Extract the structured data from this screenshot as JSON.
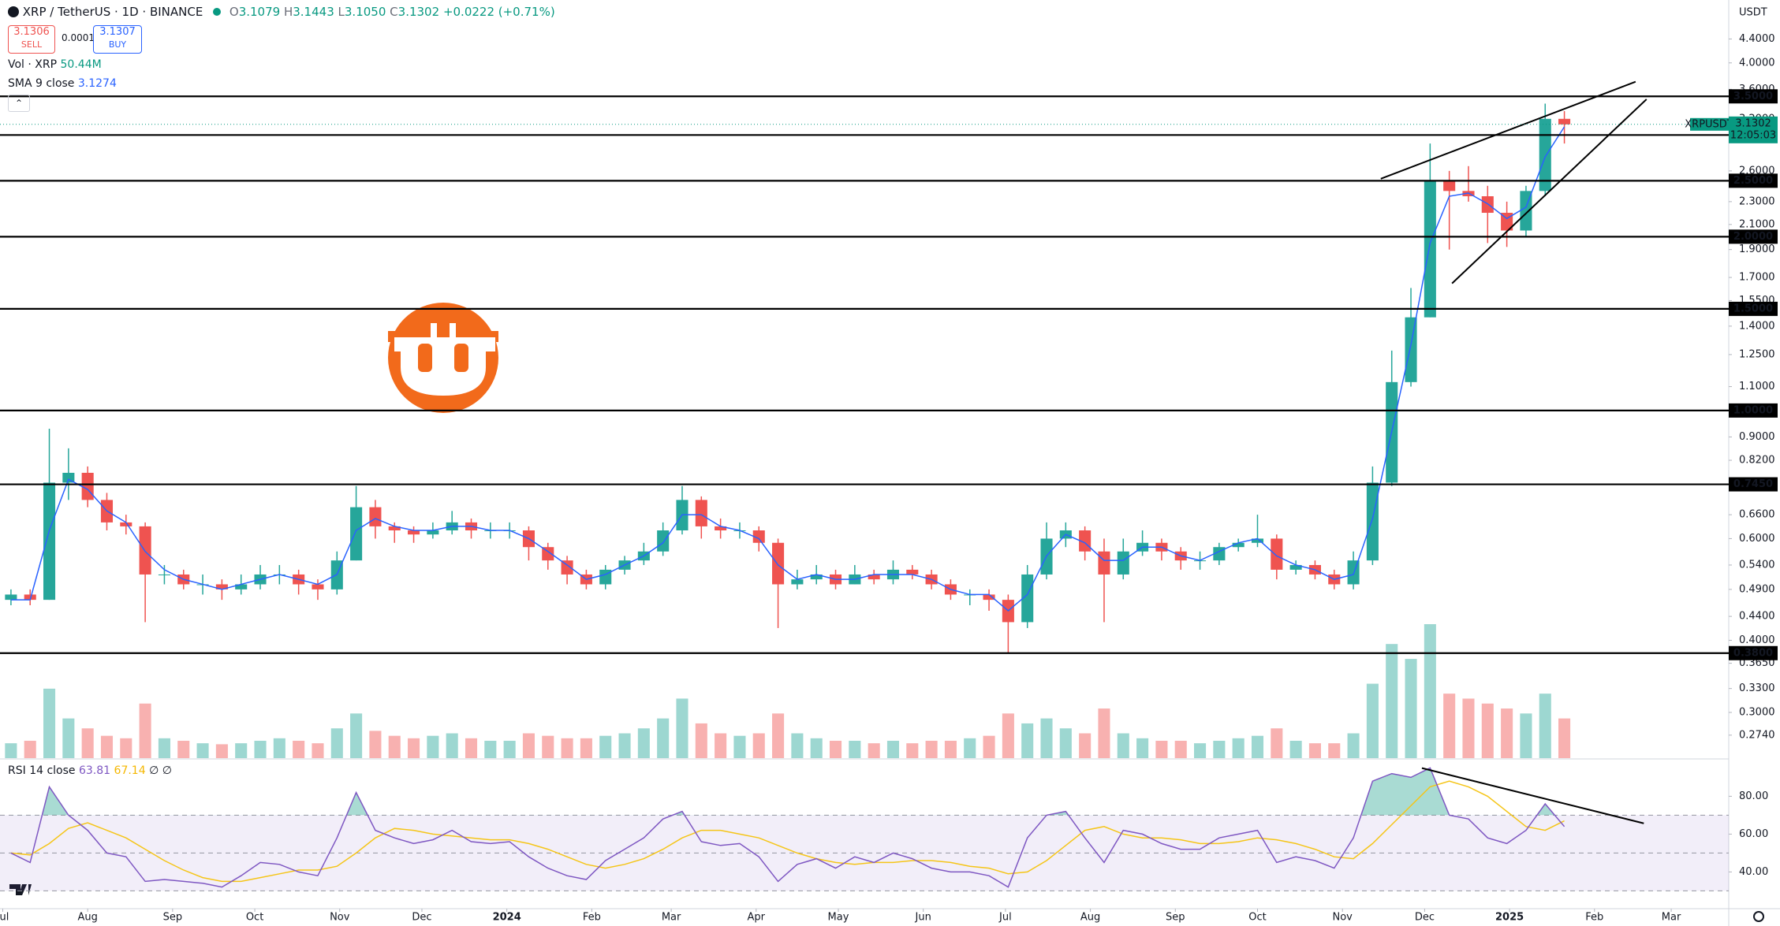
{
  "header": {
    "symbol": "XRP / TetherUS · 1D · BINANCE",
    "ohlc": [
      {
        "label": "O",
        "value": "3.1079"
      },
      {
        "label": "H",
        "value": "3.1443"
      },
      {
        "label": "L",
        "value": "3.1050"
      },
      {
        "label": "C",
        "value": "3.1302"
      }
    ],
    "change": "+0.0222 (+0.71%)",
    "sell_price": "3.1306",
    "sell": "SELL",
    "spread": "0.0001",
    "buy_price": "3.1307",
    "buy": "BUY",
    "volume_label": "Vol · XRP",
    "volume_value": "50.44M",
    "sma_label": "SMA 9 close",
    "sma_value": "3.1274",
    "rsi_label": "RSI 14 close",
    "rsi_value": "63.81",
    "rsi_ma_value": "67.14",
    "rsi_extra": "∅ ∅",
    "currency": "USDT"
  },
  "chart_data": {
    "type": "candlestick",
    "log_scale": true,
    "grid": false,
    "up_color": "#26a69a",
    "down_color": "#ef5350",
    "sma_color": "#2962ff",
    "rsi_color": "#7e57c2",
    "rsi_ma_color": "#f5c518",
    "level_color": "#000000",
    "x": [
      3,
      10,
      17,
      24,
      31,
      38,
      45,
      52,
      59,
      66,
      73,
      80,
      87,
      94,
      101,
      108,
      115,
      122,
      129,
      136,
      143,
      150,
      157,
      164,
      171,
      178,
      185,
      192,
      199,
      206,
      213,
      220,
      227,
      234,
      241,
      248,
      255,
      262,
      269,
      276,
      283,
      290,
      297,
      304,
      311,
      318,
      325,
      332,
      339,
      346,
      353,
      360,
      367,
      374,
      381,
      388,
      395,
      402,
      409,
      416,
      423,
      430,
      437,
      444,
      451,
      458,
      465,
      472,
      479,
      486,
      493,
      500,
      507,
      514,
      521,
      528,
      535,
      542,
      549,
      556,
      563,
      570
    ],
    "ohlc": [
      [
        0.47,
        0.49,
        0.46,
        0.48
      ],
      [
        0.48,
        0.49,
        0.46,
        0.47
      ],
      [
        0.47,
        0.93,
        0.47,
        0.75
      ],
      [
        0.75,
        0.86,
        0.7,
        0.78
      ],
      [
        0.78,
        0.8,
        0.68,
        0.7
      ],
      [
        0.7,
        0.72,
        0.62,
        0.64
      ],
      [
        0.64,
        0.66,
        0.61,
        0.63
      ],
      [
        0.63,
        0.64,
        0.43,
        0.52
      ],
      [
        0.52,
        0.54,
        0.5,
        0.52
      ],
      [
        0.52,
        0.53,
        0.49,
        0.5
      ],
      [
        0.5,
        0.52,
        0.48,
        0.5
      ],
      [
        0.5,
        0.51,
        0.47,
        0.49
      ],
      [
        0.49,
        0.52,
        0.48,
        0.5
      ],
      [
        0.5,
        0.54,
        0.49,
        0.52
      ],
      [
        0.52,
        0.54,
        0.5,
        0.52
      ],
      [
        0.52,
        0.53,
        0.48,
        0.5
      ],
      [
        0.5,
        0.51,
        0.47,
        0.49
      ],
      [
        0.49,
        0.57,
        0.48,
        0.55
      ],
      [
        0.55,
        0.74,
        0.55,
        0.68
      ],
      [
        0.68,
        0.7,
        0.6,
        0.63
      ],
      [
        0.63,
        0.64,
        0.59,
        0.62
      ],
      [
        0.62,
        0.63,
        0.59,
        0.61
      ],
      [
        0.61,
        0.64,
        0.6,
        0.62
      ],
      [
        0.62,
        0.67,
        0.61,
        0.64
      ],
      [
        0.64,
        0.65,
        0.6,
        0.62
      ],
      [
        0.62,
        0.64,
        0.6,
        0.62
      ],
      [
        0.62,
        0.64,
        0.6,
        0.62
      ],
      [
        0.62,
        0.63,
        0.55,
        0.58
      ],
      [
        0.58,
        0.59,
        0.53,
        0.55
      ],
      [
        0.55,
        0.56,
        0.5,
        0.52
      ],
      [
        0.52,
        0.53,
        0.49,
        0.5
      ],
      [
        0.5,
        0.54,
        0.49,
        0.53
      ],
      [
        0.53,
        0.56,
        0.52,
        0.55
      ],
      [
        0.55,
        0.59,
        0.54,
        0.57
      ],
      [
        0.57,
        0.64,
        0.56,
        0.62
      ],
      [
        0.62,
        0.74,
        0.61,
        0.7
      ],
      [
        0.7,
        0.71,
        0.6,
        0.63
      ],
      [
        0.63,
        0.65,
        0.6,
        0.62
      ],
      [
        0.62,
        0.64,
        0.6,
        0.62
      ],
      [
        0.62,
        0.63,
        0.57,
        0.59
      ],
      [
        0.59,
        0.6,
        0.42,
        0.5
      ],
      [
        0.5,
        0.53,
        0.49,
        0.51
      ],
      [
        0.51,
        0.54,
        0.5,
        0.52
      ],
      [
        0.52,
        0.53,
        0.49,
        0.5
      ],
      [
        0.5,
        0.54,
        0.5,
        0.52
      ],
      [
        0.52,
        0.53,
        0.5,
        0.51
      ],
      [
        0.51,
        0.55,
        0.5,
        0.53
      ],
      [
        0.53,
        0.54,
        0.51,
        0.52
      ],
      [
        0.52,
        0.53,
        0.49,
        0.5
      ],
      [
        0.5,
        0.51,
        0.47,
        0.48
      ],
      [
        0.48,
        0.49,
        0.46,
        0.48
      ],
      [
        0.48,
        0.49,
        0.45,
        0.47
      ],
      [
        0.47,
        0.48,
        0.38,
        0.43
      ],
      [
        0.43,
        0.54,
        0.42,
        0.52
      ],
      [
        0.52,
        0.64,
        0.51,
        0.6
      ],
      [
        0.6,
        0.64,
        0.58,
        0.62
      ],
      [
        0.62,
        0.63,
        0.55,
        0.57
      ],
      [
        0.57,
        0.6,
        0.43,
        0.52
      ],
      [
        0.52,
        0.6,
        0.51,
        0.57
      ],
      [
        0.57,
        0.62,
        0.56,
        0.59
      ],
      [
        0.59,
        0.6,
        0.55,
        0.57
      ],
      [
        0.57,
        0.58,
        0.53,
        0.55
      ],
      [
        0.55,
        0.57,
        0.53,
        0.55
      ],
      [
        0.55,
        0.59,
        0.54,
        0.58
      ],
      [
        0.58,
        0.6,
        0.57,
        0.59
      ],
      [
        0.59,
        0.66,
        0.58,
        0.6
      ],
      [
        0.6,
        0.61,
        0.51,
        0.53
      ],
      [
        0.53,
        0.55,
        0.52,
        0.54
      ],
      [
        0.54,
        0.55,
        0.51,
        0.52
      ],
      [
        0.52,
        0.53,
        0.49,
        0.5
      ],
      [
        0.5,
        0.57,
        0.49,
        0.55
      ],
      [
        0.55,
        0.8,
        0.54,
        0.75
      ],
      [
        0.75,
        1.27,
        0.74,
        1.12
      ],
      [
        1.12,
        1.63,
        1.1,
        1.45
      ],
      [
        1.45,
        2.9,
        1.45,
        2.5
      ],
      [
        2.5,
        2.6,
        1.9,
        2.4
      ],
      [
        2.4,
        2.65,
        2.3,
        2.35
      ],
      [
        2.35,
        2.45,
        1.95,
        2.2
      ],
      [
        2.2,
        2.3,
        1.92,
        2.05
      ],
      [
        2.05,
        2.45,
        2.0,
        2.4
      ],
      [
        2.4,
        3.4,
        2.35,
        3.2
      ],
      [
        3.2,
        3.3,
        2.9,
        3.13
      ]
    ],
    "sma": [
      0.47,
      0.47,
      0.62,
      0.76,
      0.73,
      0.67,
      0.64,
      0.57,
      0.53,
      0.51,
      0.5,
      0.49,
      0.5,
      0.51,
      0.52,
      0.51,
      0.5,
      0.52,
      0.62,
      0.65,
      0.63,
      0.62,
      0.62,
      0.63,
      0.63,
      0.62,
      0.62,
      0.6,
      0.57,
      0.54,
      0.51,
      0.52,
      0.54,
      0.56,
      0.59,
      0.66,
      0.66,
      0.63,
      0.62,
      0.6,
      0.54,
      0.51,
      0.52,
      0.51,
      0.51,
      0.52,
      0.52,
      0.52,
      0.51,
      0.49,
      0.48,
      0.48,
      0.45,
      0.48,
      0.56,
      0.61,
      0.59,
      0.55,
      0.55,
      0.58,
      0.58,
      0.56,
      0.55,
      0.57,
      0.59,
      0.6,
      0.56,
      0.54,
      0.53,
      0.51,
      0.52,
      0.65,
      0.92,
      1.3,
      1.95,
      2.35,
      2.38,
      2.28,
      2.15,
      2.25,
      2.75,
      3.1
    ],
    "volume": [
      30,
      35,
      140,
      80,
      60,
      45,
      40,
      110,
      40,
      35,
      30,
      28,
      30,
      35,
      40,
      35,
      30,
      60,
      90,
      55,
      45,
      40,
      45,
      50,
      40,
      35,
      35,
      50,
      45,
      40,
      40,
      45,
      50,
      60,
      80,
      120,
      70,
      50,
      45,
      50,
      90,
      50,
      40,
      35,
      35,
      30,
      35,
      30,
      35,
      35,
      40,
      45,
      90,
      70,
      80,
      60,
      50,
      100,
      50,
      40,
      35,
      35,
      30,
      35,
      40,
      45,
      60,
      35,
      30,
      30,
      50,
      150,
      230,
      200,
      270,
      130,
      120,
      110,
      100,
      90,
      130,
      80
    ],
    "rsi": [
      50,
      45,
      85,
      70,
      62,
      50,
      48,
      35,
      36,
      35,
      34,
      32,
      38,
      45,
      44,
      40,
      38,
      58,
      82,
      62,
      58,
      55,
      57,
      62,
      56,
      55,
      56,
      48,
      42,
      38,
      36,
      46,
      52,
      58,
      68,
      72,
      56,
      54,
      55,
      48,
      35,
      44,
      47,
      42,
      48,
      45,
      50,
      47,
      42,
      40,
      40,
      38,
      32,
      58,
      70,
      72,
      58,
      45,
      62,
      60,
      55,
      52,
      52,
      58,
      60,
      62,
      45,
      48,
      46,
      42,
      58,
      88,
      92,
      90,
      95,
      70,
      68,
      58,
      55,
      62,
      76,
      64
    ],
    "rsi_ma": [
      50,
      49,
      55,
      63,
      66,
      62,
      58,
      52,
      46,
      41,
      37,
      35,
      35,
      37,
      39,
      41,
      41,
      43,
      50,
      58,
      63,
      62,
      60,
      59,
      58,
      57,
      57,
      55,
      52,
      48,
      44,
      42,
      44,
      47,
      52,
      58,
      62,
      62,
      60,
      58,
      54,
      50,
      47,
      45,
      44,
      45,
      45,
      46,
      46,
      45,
      43,
      42,
      39,
      40,
      46,
      54,
      62,
      64,
      60,
      58,
      58,
      57,
      55,
      55,
      56,
      58,
      57,
      55,
      52,
      48,
      47,
      55,
      65,
      75,
      85,
      88,
      85,
      80,
      72,
      64,
      62,
      67
    ],
    "xlim": [
      -1,
      630
    ],
    "xticks": [
      {
        "value": 0,
        "label": "Jul"
      },
      {
        "value": 31,
        "label": "Aug"
      },
      {
        "value": 62,
        "label": "Sep"
      },
      {
        "value": 92,
        "label": "Oct"
      },
      {
        "value": 123,
        "label": "Nov"
      },
      {
        "value": 153,
        "label": "Dec"
      },
      {
        "value": 184,
        "label": "2024"
      },
      {
        "value": 215,
        "label": "Feb"
      },
      {
        "value": 244,
        "label": "Mar"
      },
      {
        "value": 275,
        "label": "Apr"
      },
      {
        "value": 305,
        "label": "May"
      },
      {
        "value": 336,
        "label": "Jun"
      },
      {
        "value": 366,
        "label": "Jul"
      },
      {
        "value": 397,
        "label": "Aug"
      },
      {
        "value": 428,
        "label": "Sep"
      },
      {
        "value": 458,
        "label": "Oct"
      },
      {
        "value": 489,
        "label": "Nov"
      },
      {
        "value": 519,
        "label": "Dec"
      },
      {
        "value": 550,
        "label": "2025"
      },
      {
        "value": 581,
        "label": "Feb"
      },
      {
        "value": 609,
        "label": "Mar"
      }
    ],
    "ylim": [
      0.25,
      5.14
    ],
    "yticks": [
      {
        "value": 4.4,
        "label": "4.4000"
      },
      {
        "value": 4.0,
        "label": "4.0000"
      },
      {
        "value": 3.6,
        "label": "3.6000"
      },
      {
        "value": 3.2,
        "label": "3.2000"
      },
      {
        "value": 2.6,
        "label": "2.6000"
      },
      {
        "value": 2.3,
        "label": "2.3000"
      },
      {
        "value": 2.1,
        "label": "2.1000"
      },
      {
        "value": 1.9,
        "label": "1.9000"
      },
      {
        "value": 1.7,
        "label": "1.7000"
      },
      {
        "value": 1.55,
        "label": "1.5500"
      },
      {
        "value": 1.4,
        "label": "1.4000"
      },
      {
        "value": 1.25,
        "label": "1.2500"
      },
      {
        "value": 1.1,
        "label": "1.1000"
      },
      {
        "value": 0.9,
        "label": "0.9000"
      },
      {
        "value": 0.82,
        "label": "0.8200"
      },
      {
        "value": 0.66,
        "label": "0.6600"
      },
      {
        "value": 0.6,
        "label": "0.6000"
      },
      {
        "value": 0.54,
        "label": "0.5400"
      },
      {
        "value": 0.49,
        "label": "0.4900"
      },
      {
        "value": 0.44,
        "label": "0.4400"
      },
      {
        "value": 0.4,
        "label": "0.4000"
      },
      {
        "value": 0.365,
        "label": "0.3650"
      },
      {
        "value": 0.33,
        "label": "0.3300"
      },
      {
        "value": 0.3,
        "label": "0.3000"
      },
      {
        "value": 0.274,
        "label": "0.2740"
      }
    ],
    "levels": [
      {
        "value": 3.5,
        "label": "3.5000"
      },
      {
        "value": 3.0,
        "label": "3.0000"
      },
      {
        "value": 2.5,
        "label": "2.5000"
      },
      {
        "value": 2.0,
        "label": "2.0000"
      },
      {
        "value": 1.5,
        "label": "1.5000"
      },
      {
        "value": 1.0,
        "label": "1.0000"
      },
      {
        "value": 0.745,
        "label": "0.7450"
      },
      {
        "value": 0.38,
        "label": "0.3800"
      }
    ],
    "price_tag": {
      "symbol": "XRPUSDT",
      "value": 3.1302,
      "label": "3.1302",
      "countdown": "12:05:03"
    },
    "trendlines": [
      [
        [
          503,
          2.52
        ],
        [
          596,
          3.71
        ]
      ],
      [
        [
          529,
          1.66
        ],
        [
          600,
          3.46
        ]
      ]
    ],
    "rsi_ylim": [
      21,
      98.5
    ],
    "rsi_yticks": [
      {
        "value": 80,
        "label": "80.00"
      },
      {
        "value": 60,
        "label": "60.00"
      },
      {
        "value": 40,
        "label": "40.00"
      }
    ],
    "rsi_levels": [
      30,
      50,
      70
    ],
    "rsi_trendline": [
      [
        518,
        94.9
      ],
      [
        599,
        65.7
      ]
    ]
  }
}
